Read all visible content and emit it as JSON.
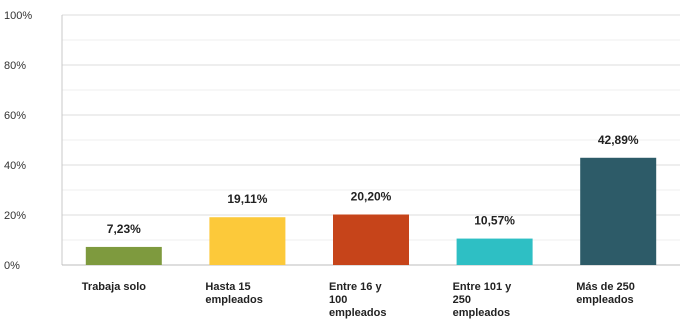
{
  "chart_data": {
    "type": "bar",
    "categories": [
      [
        "Trabaja solo"
      ],
      [
        "Hasta 15",
        "empleados"
      ],
      [
        "Entre 16 y",
        "100",
        "empleados"
      ],
      [
        "Entre 101 y",
        "250",
        "empleados"
      ],
      [
        "Más de 250",
        "empleados"
      ]
    ],
    "values": [
      7.23,
      19.11,
      20.2,
      10.57,
      42.89
    ],
    "value_labels": [
      "7,23%",
      "19,11%",
      "20,20%",
      "10,57%",
      "42,89%"
    ],
    "colors": [
      "#7e9a3e",
      "#fcc93a",
      "#c6441a",
      "#2ebfc4",
      "#2d5b68"
    ],
    "ylim": [
      0,
      100
    ],
    "yticks": [
      0,
      20,
      40,
      60,
      80,
      100
    ],
    "ytick_labels": [
      "0%",
      "20%",
      "40%",
      "60%",
      "80%",
      "100%"
    ],
    "grid": true,
    "legend": "none",
    "title": "",
    "xlabel": "",
    "ylabel": ""
  }
}
